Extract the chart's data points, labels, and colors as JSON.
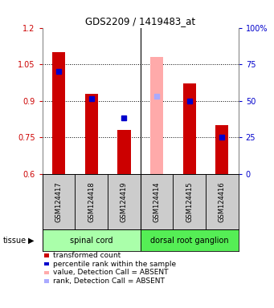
{
  "title": "GDS2209 / 1419483_at",
  "samples": [
    "GSM124417",
    "GSM124418",
    "GSM124419",
    "GSM124414",
    "GSM124415",
    "GSM124416"
  ],
  "red_values": [
    1.1,
    0.93,
    0.78,
    null,
    0.97,
    0.8
  ],
  "blue_values": [
    1.02,
    0.91,
    0.83,
    null,
    0.9,
    0.75
  ],
  "pink_values": [
    null,
    null,
    null,
    1.08,
    null,
    null
  ],
  "lightblue_values": [
    null,
    null,
    null,
    0.92,
    null,
    null
  ],
  "ylim": [
    0.6,
    1.2
  ],
  "y2lim": [
    0,
    100
  ],
  "yticks": [
    0.6,
    0.75,
    0.9,
    1.05,
    1.2
  ],
  "ytick_labels": [
    "0.6",
    "0.75",
    "0.9",
    "1.05",
    "1.2"
  ],
  "y2ticks": [
    0,
    25,
    50,
    75,
    100
  ],
  "y2tick_labels": [
    "0",
    "25",
    "50",
    "75",
    "100%"
  ],
  "groups": [
    {
      "label": "spinal cord",
      "start": 0,
      "end": 3,
      "color": "#aaffaa"
    },
    {
      "label": "dorsal root ganglion",
      "start": 3,
      "end": 6,
      "color": "#55ee55"
    }
  ],
  "bar_width": 0.4,
  "red_color": "#cc0000",
  "blue_color": "#0000cc",
  "pink_color": "#ffaaaa",
  "lightblue_color": "#aaaaff",
  "sample_bg": "#cccccc",
  "legend_items": [
    {
      "color": "#cc0000",
      "label": "transformed count"
    },
    {
      "color": "#0000cc",
      "label": "percentile rank within the sample"
    },
    {
      "color": "#ffaaaa",
      "label": "value, Detection Call = ABSENT"
    },
    {
      "color": "#aaaaff",
      "label": "rank, Detection Call = ABSENT"
    }
  ]
}
